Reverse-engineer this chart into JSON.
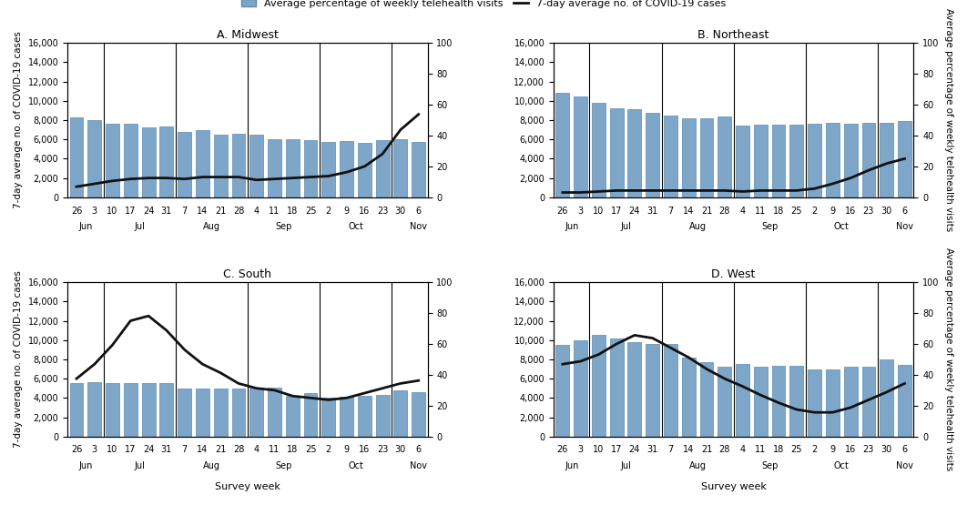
{
  "x_labels": [
    "26",
    "3",
    "10",
    "17",
    "24",
    "31",
    "7",
    "14",
    "21",
    "28",
    "4",
    "11",
    "18",
    "25",
    "2",
    "9",
    "16",
    "23",
    "30",
    "6"
  ],
  "month_names": [
    "Jun",
    "Jul",
    "Aug",
    "Sep",
    "Oct",
    "Nov"
  ],
  "month_dividers": [
    1.5,
    5.5,
    9.5,
    13.5,
    17.5
  ],
  "month_x_positions": [
    0.5,
    3.5,
    7.5,
    11.5,
    15.5,
    19.0
  ],
  "midwest_bars": [
    8300,
    8000,
    7600,
    7600,
    7200,
    7300,
    6800,
    7000,
    6500,
    6600,
    6500,
    6000,
    6000,
    5900,
    5700,
    5800,
    5600,
    5900,
    6000,
    5700
  ],
  "midwest_line": [
    1100,
    1400,
    1700,
    1900,
    2000,
    2000,
    1900,
    2100,
    2100,
    2100,
    1800,
    1900,
    2000,
    2100,
    2200,
    2600,
    3200,
    4500,
    7000,
    8600
  ],
  "northeast_bars": [
    10800,
    10500,
    9800,
    9200,
    9100,
    8800,
    8500,
    8200,
    8200,
    8400,
    7400,
    7500,
    7500,
    7500,
    7600,
    7700,
    7600,
    7700,
    7700,
    7900
  ],
  "northeast_line": [
    500,
    500,
    600,
    700,
    700,
    700,
    700,
    700,
    700,
    700,
    600,
    700,
    700,
    700,
    900,
    1400,
    2000,
    2800,
    3500,
    4000
  ],
  "south_bars": [
    5500,
    5600,
    5500,
    5500,
    5500,
    5500,
    5000,
    5000,
    5000,
    5000,
    5100,
    5100,
    4200,
    4500,
    4000,
    4100,
    4200,
    4300,
    4800,
    4600
  ],
  "south_line": [
    6000,
    7500,
    9500,
    12000,
    12500,
    11000,
    9000,
    7500,
    6600,
    5500,
    5000,
    4800,
    4200,
    4000,
    3800,
    4000,
    4500,
    5000,
    5500,
    5800
  ],
  "west_bars": [
    9500,
    10000,
    10500,
    10200,
    9800,
    9600,
    9600,
    8200,
    7700,
    7200,
    7500,
    7200,
    7300,
    7300,
    7000,
    7000,
    7200,
    7200,
    8000,
    7400
  ],
  "west_line": [
    7500,
    7800,
    8500,
    9600,
    10500,
    10200,
    9200,
    8200,
    7000,
    6000,
    5200,
    4300,
    3500,
    2800,
    2500,
    2500,
    3000,
    3800,
    4600,
    5500
  ],
  "bar_color": "#7da6c8",
  "bar_edgecolor": "#5a8ab0",
  "line_color": "#111111",
  "background_color": "#ffffff",
  "ylim_left": [
    0,
    16000
  ],
  "ylim_right": [
    0,
    100
  ],
  "yticks_left": [
    0,
    2000,
    4000,
    6000,
    8000,
    10000,
    12000,
    14000,
    16000
  ],
  "yticks_left_labels": [
    "0",
    "2,000",
    "4,000",
    "6,000",
    "8,000",
    "10,000",
    "12,000",
    "14,000",
    "16,000"
  ],
  "yticks_right": [
    0,
    20,
    40,
    60,
    80,
    100
  ],
  "subplot_titles": [
    "A. Midwest",
    "B. Northeast",
    "C. South",
    "D. West"
  ],
  "ylabel_left": "7-day average no. of COVID-19 cases",
  "ylabel_right": "Average percentage of weekly telehealth visits",
  "xlabel": "Survey week",
  "legend_bar_label": "Average percentage of weekly telehealth visits",
  "legend_line_label": "7-day average no. of COVID-19 cases"
}
